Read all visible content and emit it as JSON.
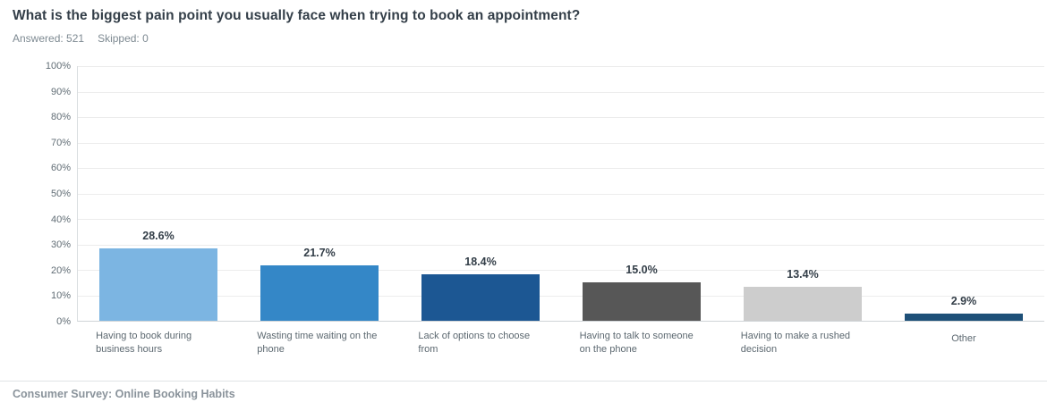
{
  "header": {
    "title": "What is the biggest pain point you usually face when trying to book an appointment?",
    "answered": "Answered: 521",
    "skipped": "Skipped: 0"
  },
  "chart_data": {
    "type": "bar",
    "title": "What is the biggest pain point you usually face when trying to book an appointment?",
    "categories": [
      "Having to book during business hours",
      "Wasting time waiting on the phone",
      "Lack of options to choose from",
      "Having to talk to someone on the phone",
      "Having to make a rushed decision",
      "Other"
    ],
    "values": [
      28.6,
      21.7,
      18.4,
      15.0,
      13.4,
      2.9
    ],
    "value_labels": [
      "28.6%",
      "21.7%",
      "18.4%",
      "15.0%",
      "13.4%",
      "2.9%"
    ],
    "bar_colors": [
      "#7cb5e2",
      "#3487c7",
      "#1c5793",
      "#575757",
      "#cdcdcd",
      "#1e5078"
    ],
    "xlabel": "",
    "ylabel": "",
    "ylim": [
      0,
      100
    ],
    "y_tick_step": 10,
    "y_ticks": [
      "100%",
      "90%",
      "80%",
      "70%",
      "60%",
      "50%",
      "40%",
      "30%",
      "20%",
      "10%",
      "0%"
    ],
    "grid": true,
    "legend": false
  },
  "footer": {
    "source": "Consumer Survey: Online Booking Habits"
  }
}
